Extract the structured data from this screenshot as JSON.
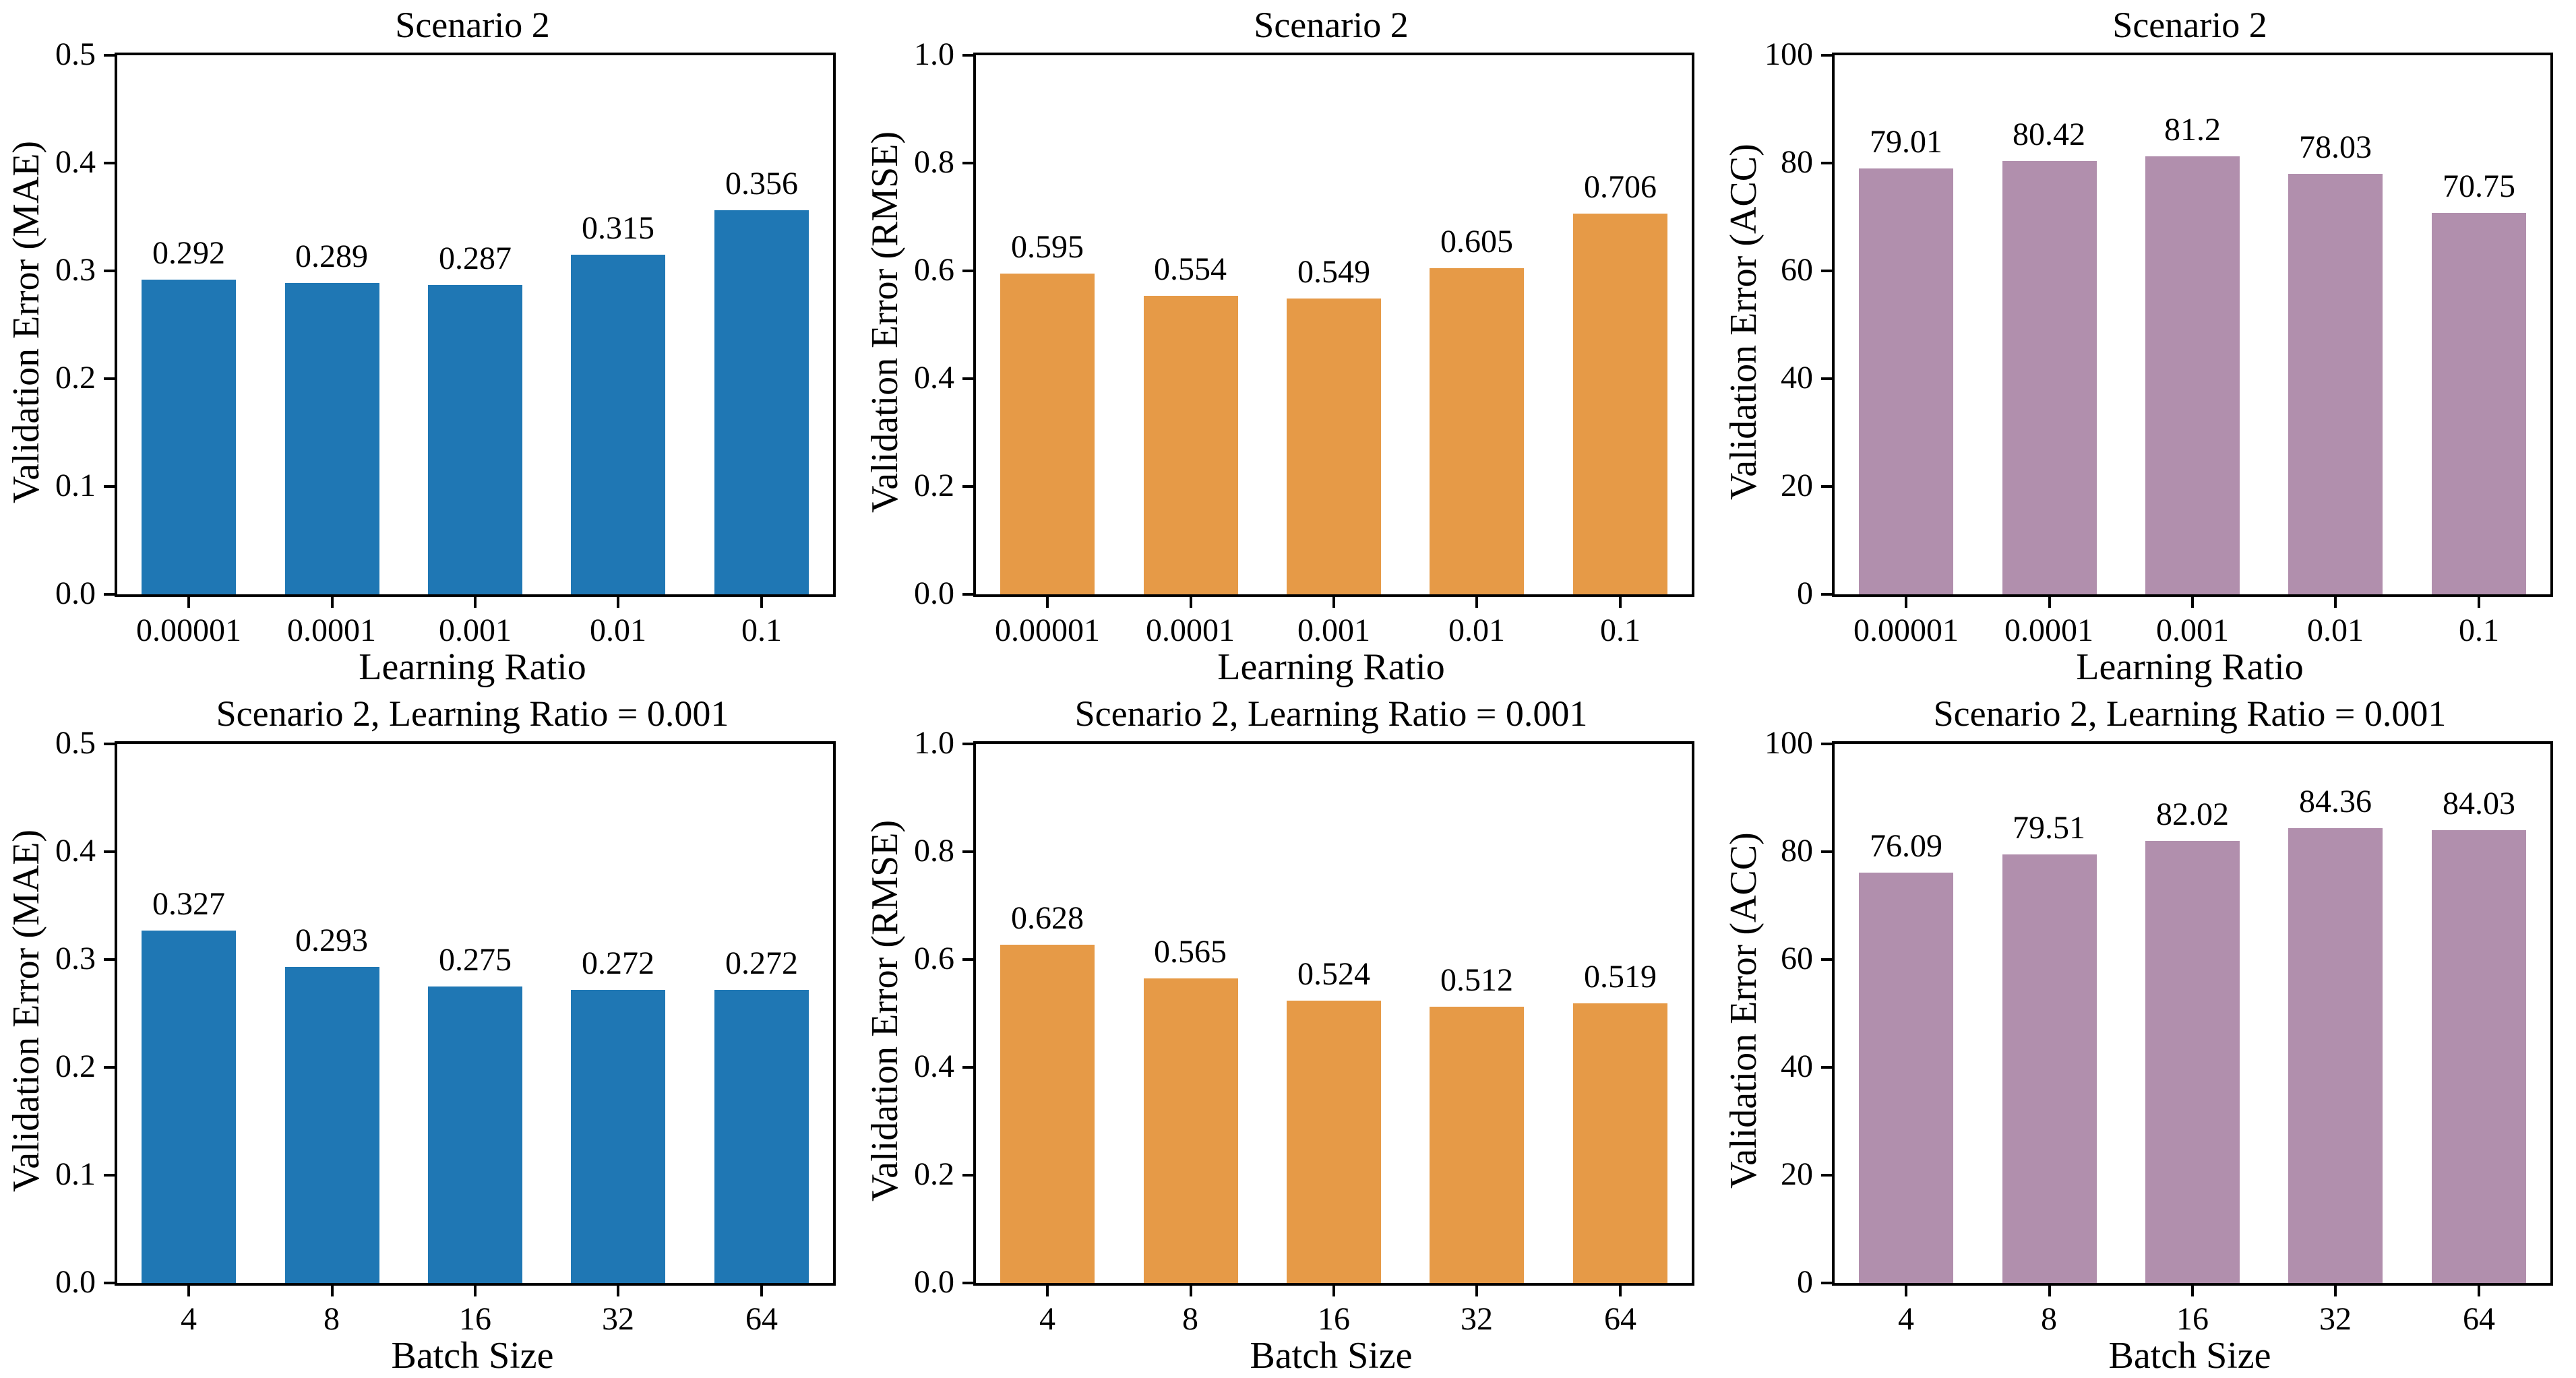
{
  "page": {
    "background": "#ffffff",
    "text_color": "#000000"
  },
  "chart_data": [
    {
      "type": "bar",
      "title": "Scenario 2",
      "ylabel": "Validation Error (MAE)",
      "xlabel": "Learning Ratio",
      "categories": [
        "0.00001",
        "0.0001",
        "0.001",
        "0.01",
        "0.1"
      ],
      "values": [
        0.292,
        0.289,
        0.287,
        0.315,
        0.356
      ],
      "value_labels": [
        "0.292",
        "0.289",
        "0.287",
        "0.315",
        "0.356"
      ],
      "ylim": [
        0,
        0.5
      ],
      "ytick_vals": [
        0,
        0.1,
        0.2,
        0.3,
        0.4,
        0.5
      ],
      "ytick_labels": [
        "0.0",
        "0.1",
        "0.2",
        "0.3",
        "0.4",
        "0.5"
      ],
      "bar_color": "#1f77b4",
      "grid": false,
      "legend": false,
      "bar_width_frac": 0.66
    },
    {
      "type": "bar",
      "title": "Scenario 2",
      "ylabel": "Validation Error (RMSE)",
      "xlabel": "Learning Ratio",
      "categories": [
        "0.00001",
        "0.0001",
        "0.001",
        "0.01",
        "0.1"
      ],
      "values": [
        0.595,
        0.554,
        0.549,
        0.605,
        0.706
      ],
      "value_labels": [
        "0.595",
        "0.554",
        "0.549",
        "0.605",
        "0.706"
      ],
      "ylim": [
        0,
        1.0
      ],
      "ytick_vals": [
        0,
        0.2,
        0.4,
        0.6,
        0.8,
        1.0
      ],
      "ytick_labels": [
        "0.0",
        "0.2",
        "0.4",
        "0.6",
        "0.8",
        "1.0"
      ],
      "bar_color": "#e69a47",
      "grid": false,
      "legend": false,
      "bar_width_frac": 0.66
    },
    {
      "type": "bar",
      "title": "Scenario 2",
      "ylabel": "Validation Error (ACC)",
      "xlabel": "Learning Ratio",
      "categories": [
        "0.00001",
        "0.0001",
        "0.001",
        "0.01",
        "0.1"
      ],
      "values": [
        79.01,
        80.42,
        81.2,
        78.03,
        70.75
      ],
      "value_labels": [
        "79.01",
        "80.42",
        "81.2",
        "78.03",
        "70.75"
      ],
      "ylim": [
        0,
        100
      ],
      "ytick_vals": [
        0,
        20,
        40,
        60,
        80,
        100
      ],
      "ytick_labels": [
        "0",
        "20",
        "40",
        "60",
        "80",
        "100"
      ],
      "bar_color": "#b18fad",
      "grid": false,
      "legend": false,
      "bar_width_frac": 0.66
    },
    {
      "type": "bar",
      "title": "Scenario 2, Learning Ratio = 0.001",
      "ylabel": "Validation Error (MAE)",
      "xlabel": "Batch Size",
      "categories": [
        "4",
        "8",
        "16",
        "32",
        "64"
      ],
      "values": [
        0.327,
        0.293,
        0.275,
        0.272,
        0.272
      ],
      "value_labels": [
        "0.327",
        "0.293",
        "0.275",
        "0.272",
        "0.272"
      ],
      "ylim": [
        0,
        0.5
      ],
      "ytick_vals": [
        0,
        0.1,
        0.2,
        0.3,
        0.4,
        0.5
      ],
      "ytick_labels": [
        "0.0",
        "0.1",
        "0.2",
        "0.3",
        "0.4",
        "0.5"
      ],
      "bar_color": "#1f77b4",
      "grid": false,
      "legend": false,
      "bar_width_frac": 0.66
    },
    {
      "type": "bar",
      "title": "Scenario 2, Learning Ratio = 0.001",
      "ylabel": "Validation Error (RMSE)",
      "xlabel": "Batch Size",
      "categories": [
        "4",
        "8",
        "16",
        "32",
        "64"
      ],
      "values": [
        0.628,
        0.565,
        0.524,
        0.512,
        0.519
      ],
      "value_labels": [
        "0.628",
        "0.565",
        "0.524",
        "0.512",
        "0.519"
      ],
      "ylim": [
        0,
        1.0
      ],
      "ytick_vals": [
        0,
        0.2,
        0.4,
        0.6,
        0.8,
        1.0
      ],
      "ytick_labels": [
        "0.0",
        "0.2",
        "0.4",
        "0.6",
        "0.8",
        "1.0"
      ],
      "bar_color": "#e69a47",
      "grid": false,
      "legend": false,
      "bar_width_frac": 0.66
    },
    {
      "type": "bar",
      "title": "Scenario 2, Learning Ratio = 0.001",
      "ylabel": "Validation Error (ACC)",
      "xlabel": "Batch Size",
      "categories": [
        "4",
        "8",
        "16",
        "32",
        "64"
      ],
      "values": [
        76.09,
        79.51,
        82.02,
        84.36,
        84.03
      ],
      "value_labels": [
        "76.09",
        "79.51",
        "82.02",
        "84.36",
        "84.03"
      ],
      "ylim": [
        0,
        100
      ],
      "ytick_vals": [
        0,
        20,
        40,
        60,
        80,
        100
      ],
      "ytick_labels": [
        "0",
        "20",
        "40",
        "60",
        "80",
        "100"
      ],
      "bar_color": "#b18fad",
      "grid": false,
      "legend": false,
      "bar_width_frac": 0.66
    }
  ]
}
